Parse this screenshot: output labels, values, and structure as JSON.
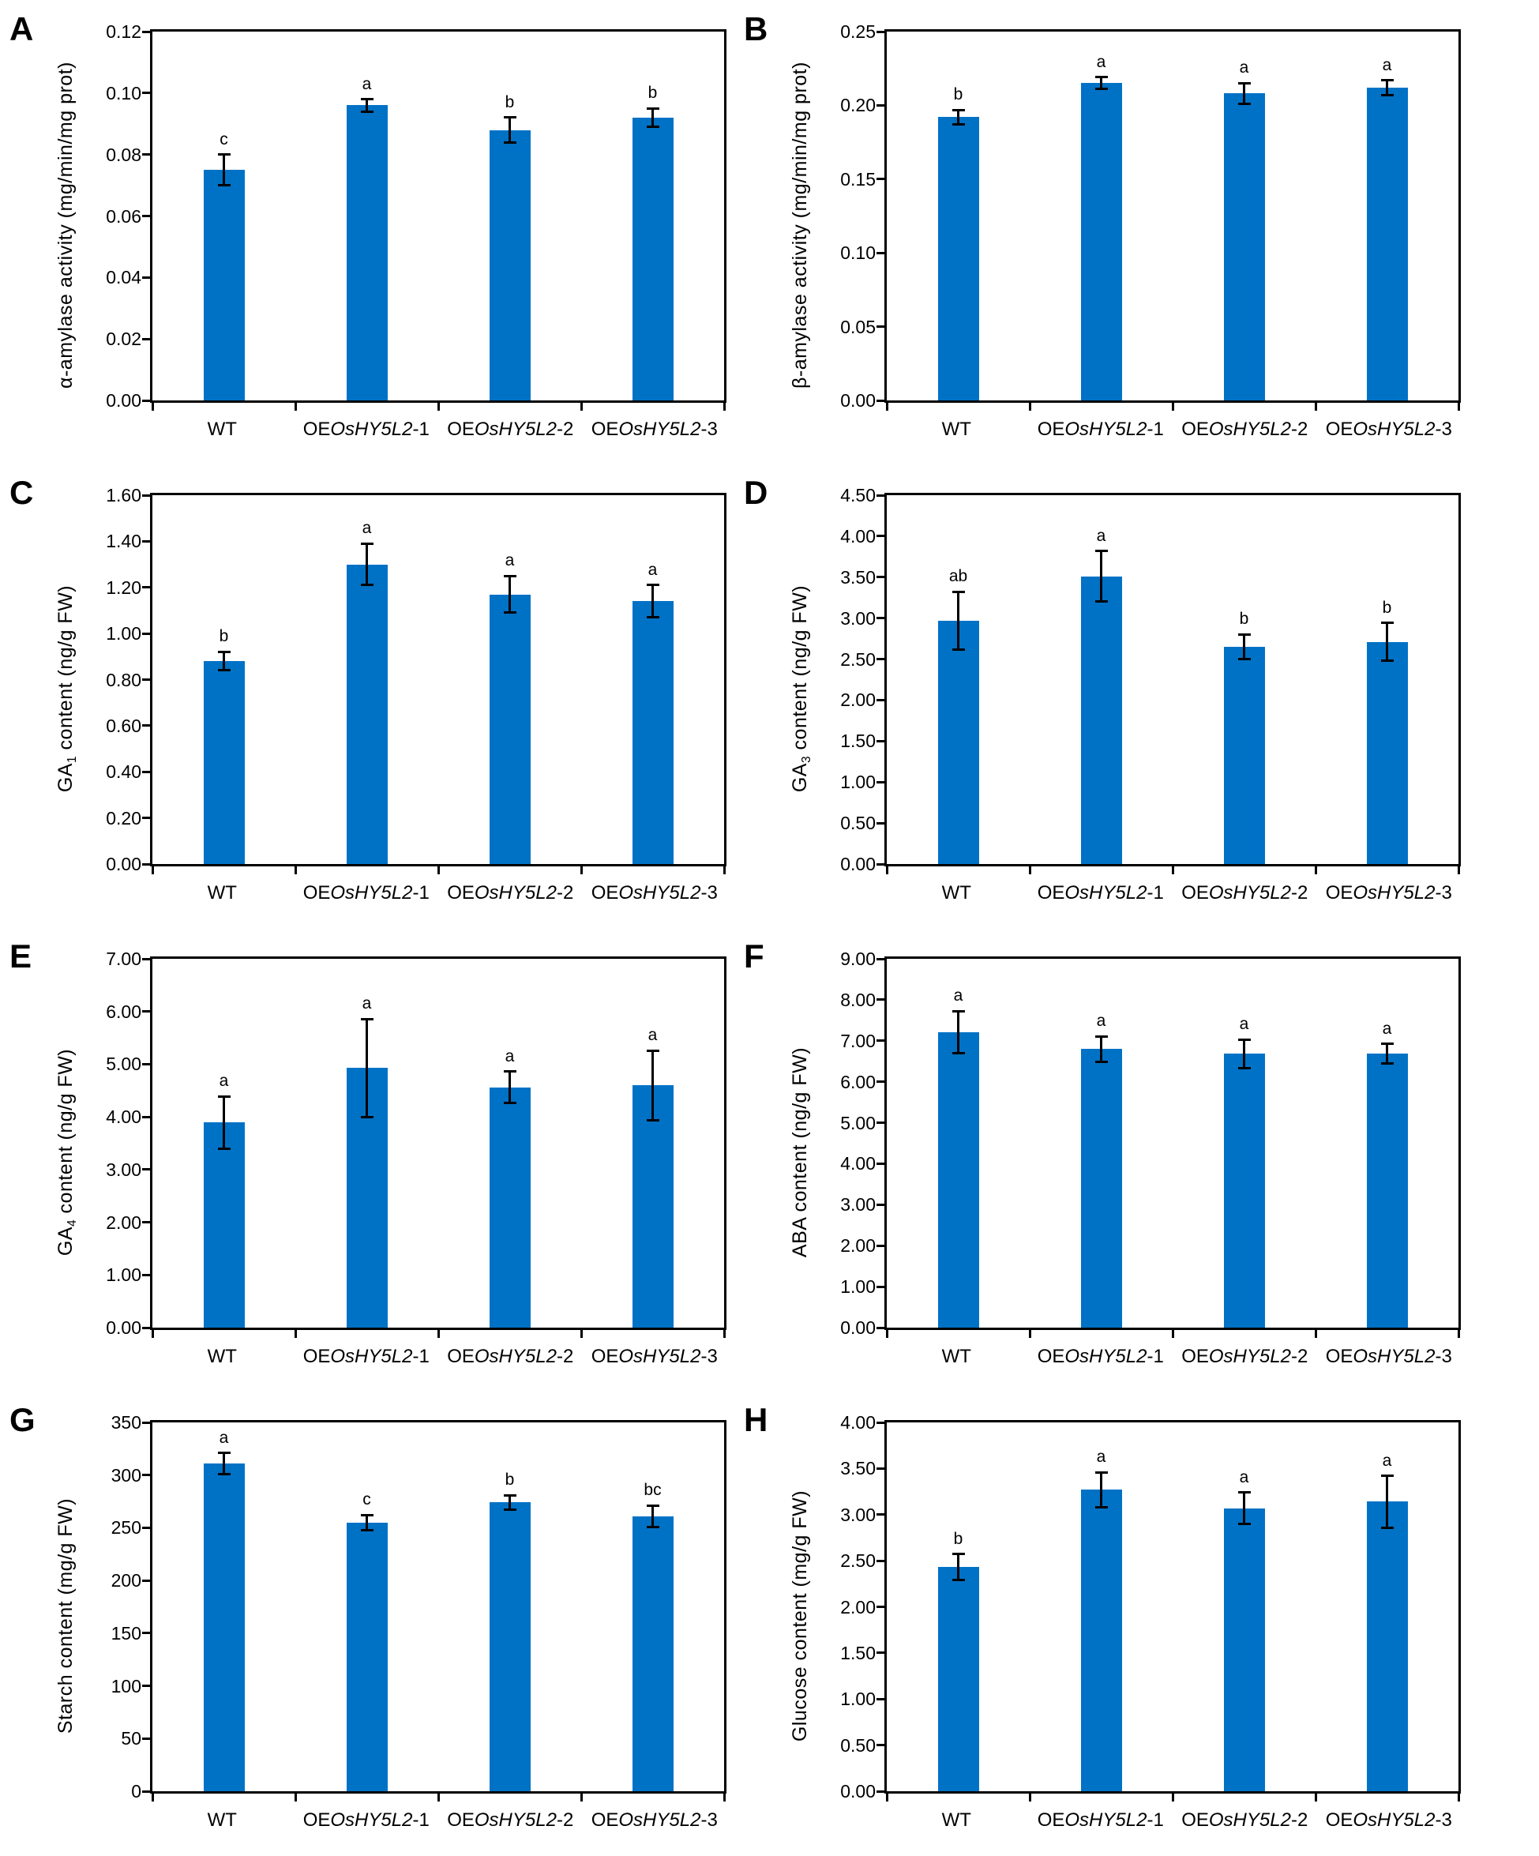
{
  "figure": {
    "background": "#FFFFFF",
    "bar_color": "#0072C6",
    "axis_color": "#000000",
    "error_bar_color": "#000000"
  },
  "categories": [
    {
      "pre": "WT",
      "italic": "",
      "post": ""
    },
    {
      "pre": "OE",
      "italic": "OsHY5L2",
      "post": "-1"
    },
    {
      "pre": "OE",
      "italic": "OsHY5L2",
      "post": "-2"
    },
    {
      "pre": "OE",
      "italic": "OsHY5L2",
      "post": "-3"
    }
  ],
  "chart_data": [
    {
      "panel": "A",
      "type": "bar",
      "title": "",
      "xlabel": "",
      "ylabel_pre": "α-amylase activity (mg/min/mg prot)",
      "ylabel_sub": "",
      "ylabel_post": "",
      "categories": [
        "WT",
        "OEOsHY5L2-1",
        "OEOsHY5L2-2",
        "OEOsHY5L2-3"
      ],
      "values": [
        0.075,
        0.096,
        0.088,
        0.092
      ],
      "errors": [
        0.005,
        0.002,
        0.004,
        0.003
      ],
      "sig_letters": [
        "c",
        "a",
        "b",
        "b"
      ],
      "ylim": [
        0,
        0.12
      ],
      "yticks": [
        "0.00",
        "0.02",
        "0.04",
        "0.06",
        "0.08",
        "0.10",
        "0.12"
      ],
      "grid": false,
      "legend": "none"
    },
    {
      "panel": "B",
      "type": "bar",
      "title": "",
      "xlabel": "",
      "ylabel_pre": "β-amylase activity (mg/min/mg prot)",
      "ylabel_sub": "",
      "ylabel_post": "",
      "categories": [
        "WT",
        "OEOsHY5L2-1",
        "OEOsHY5L2-2",
        "OEOsHY5L2-3"
      ],
      "values": [
        0.192,
        0.215,
        0.208,
        0.212
      ],
      "errors": [
        0.005,
        0.004,
        0.007,
        0.005
      ],
      "sig_letters": [
        "b",
        "a",
        "a",
        "a"
      ],
      "ylim": [
        0,
        0.25
      ],
      "yticks": [
        "0.00",
        "0.05",
        "0.10",
        "0.15",
        "0.20",
        "0.25"
      ],
      "grid": false,
      "legend": "none"
    },
    {
      "panel": "C",
      "type": "bar",
      "title": "",
      "xlabel": "",
      "ylabel_pre": "GA",
      "ylabel_sub": "1",
      "ylabel_post": " content (ng/g FW)",
      "categories": [
        "WT",
        "OEOsHY5L2-1",
        "OEOsHY5L2-2",
        "OEOsHY5L2-3"
      ],
      "values": [
        0.88,
        1.3,
        1.17,
        1.14
      ],
      "errors": [
        0.04,
        0.09,
        0.08,
        0.07
      ],
      "sig_letters": [
        "b",
        "a",
        "a",
        "a"
      ],
      "ylim": [
        0,
        1.6
      ],
      "yticks": [
        "0.00",
        "0.20",
        "0.40",
        "0.60",
        "0.80",
        "1.00",
        "1.20",
        "1.40",
        "1.60"
      ],
      "grid": false,
      "legend": "none"
    },
    {
      "panel": "D",
      "type": "bar",
      "title": "",
      "xlabel": "",
      "ylabel_pre": "GA",
      "ylabel_sub": "3",
      "ylabel_post": " content (ng/g FW)",
      "categories": [
        "WT",
        "OEOsHY5L2-1",
        "OEOsHY5L2-2",
        "OEOsHY5L2-3"
      ],
      "values": [
        2.97,
        3.51,
        2.65,
        2.71
      ],
      "errors": [
        0.35,
        0.31,
        0.15,
        0.23
      ],
      "sig_letters": [
        "ab",
        "a",
        "b",
        "b"
      ],
      "ylim": [
        0,
        4.5
      ],
      "yticks": [
        "0.00",
        "0.50",
        "1.00",
        "1.50",
        "2.00",
        "2.50",
        "3.00",
        "3.50",
        "4.00",
        "4.50"
      ],
      "grid": false,
      "legend": "none"
    },
    {
      "panel": "E",
      "type": "bar",
      "title": "",
      "xlabel": "",
      "ylabel_pre": "GA",
      "ylabel_sub": "4",
      "ylabel_post": " content (ng/g FW)",
      "categories": [
        "WT",
        "OEOsHY5L2-1",
        "OEOsHY5L2-2",
        "OEOsHY5L2-3"
      ],
      "values": [
        3.89,
        4.93,
        4.56,
        4.6
      ],
      "errors": [
        0.5,
        0.93,
        0.3,
        0.66
      ],
      "sig_letters": [
        "a",
        "a",
        "a",
        "a"
      ],
      "ylim": [
        0,
        7.0
      ],
      "yticks": [
        "0.00",
        "1.00",
        "2.00",
        "3.00",
        "4.00",
        "5.00",
        "6.00",
        "7.00"
      ],
      "grid": false,
      "legend": "none"
    },
    {
      "panel": "F",
      "type": "bar",
      "title": "",
      "xlabel": "",
      "ylabel_pre": "ABA content (ng/g FW)",
      "ylabel_sub": "",
      "ylabel_post": "",
      "categories": [
        "WT",
        "OEOsHY5L2-1",
        "OEOsHY5L2-2",
        "OEOsHY5L2-3"
      ],
      "values": [
        7.21,
        6.8,
        6.68,
        6.68
      ],
      "errors": [
        0.51,
        0.31,
        0.35,
        0.24
      ],
      "sig_letters": [
        "a",
        "a",
        "a",
        "a"
      ],
      "ylim": [
        0,
        9.0
      ],
      "yticks": [
        "0.00",
        "1.00",
        "2.00",
        "3.00",
        "4.00",
        "5.00",
        "6.00",
        "7.00",
        "8.00",
        "9.00"
      ],
      "grid": false,
      "legend": "none"
    },
    {
      "panel": "G",
      "type": "bar",
      "title": "",
      "xlabel": "",
      "ylabel_pre": "Starch content (mg/g FW)",
      "ylabel_sub": "",
      "ylabel_post": "",
      "categories": [
        "WT",
        "OEOsHY5L2-1",
        "OEOsHY5L2-2",
        "OEOsHY5L2-3"
      ],
      "values": [
        311,
        255,
        274,
        261
      ],
      "errors": [
        10,
        7,
        7,
        10
      ],
      "sig_letters": [
        "a",
        "c",
        "b",
        "bc"
      ],
      "ylim": [
        0,
        350
      ],
      "yticks": [
        "0",
        "50",
        "100",
        "150",
        "200",
        "250",
        "300",
        "350"
      ],
      "grid": false,
      "legend": "none"
    },
    {
      "panel": "H",
      "type": "bar",
      "title": "",
      "xlabel": "",
      "ylabel_pre": "Glucose content (mg/g FW)",
      "ylabel_sub": "",
      "ylabel_post": "",
      "categories": [
        "WT",
        "OEOsHY5L2-1",
        "OEOsHY5L2-2",
        "OEOsHY5L2-3"
      ],
      "values": [
        2.43,
        3.27,
        3.07,
        3.14
      ],
      "errors": [
        0.14,
        0.19,
        0.17,
        0.28
      ],
      "sig_letters": [
        "b",
        "a",
        "a",
        "a"
      ],
      "ylim": [
        0,
        4.0
      ],
      "yticks": [
        "0.00",
        "0.50",
        "1.00",
        "1.50",
        "2.00",
        "2.50",
        "3.00",
        "3.50",
        "4.00"
      ],
      "grid": false,
      "legend": "none"
    }
  ]
}
